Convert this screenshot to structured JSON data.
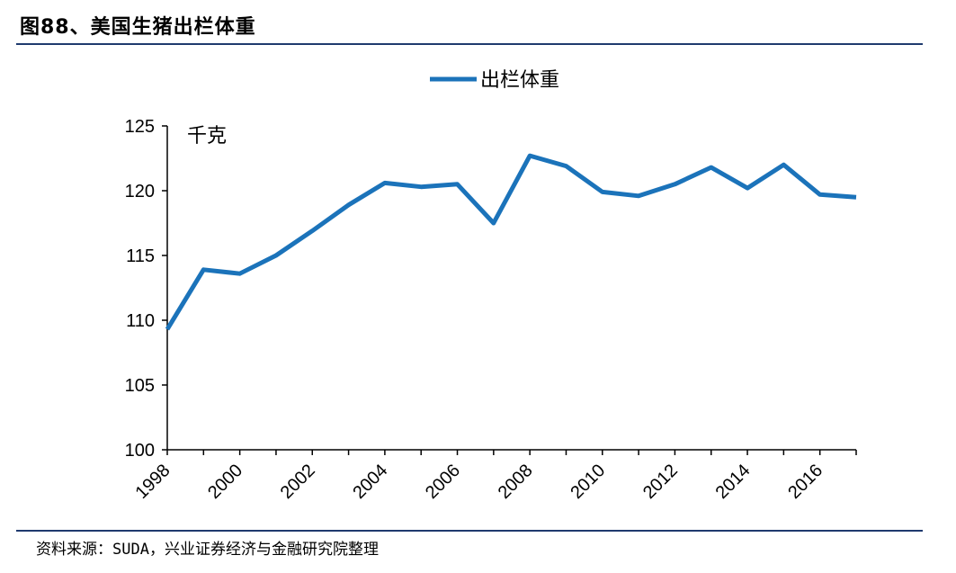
{
  "header": {
    "title": "图88、美国生猪出栏体重"
  },
  "footer": {
    "source": "资料来源：SUDA，兴业证券经济与金融研究院整理"
  },
  "colors": {
    "series": "#1b73ba",
    "rule": "#1f3a6e",
    "axis": "#000000"
  },
  "chart_data": {
    "type": "line",
    "title": "",
    "unit_label": "千克",
    "x": [
      1998,
      1999,
      2000,
      2001,
      2002,
      2003,
      2004,
      2005,
      2006,
      2007,
      2008,
      2009,
      2010,
      2011,
      2012,
      2013,
      2014,
      2015,
      2016,
      2017
    ],
    "x_tick_labels": [
      "1998",
      "2000",
      "2002",
      "2004",
      "2006",
      "2008",
      "2010",
      "2012",
      "2014",
      "2016"
    ],
    "series": [
      {
        "name": "出栏体重",
        "values": [
          109.3,
          113.9,
          113.6,
          115.0,
          116.9,
          118.9,
          120.6,
          120.3,
          120.5,
          117.5,
          122.7,
          121.9,
          119.9,
          119.6,
          120.5,
          121.8,
          120.2,
          122.0,
          119.7,
          119.5
        ]
      }
    ],
    "ylim": [
      100,
      125
    ],
    "yticks": [
      100,
      105,
      110,
      115,
      120,
      125
    ],
    "legend_position": "top-center",
    "grid": false
  }
}
